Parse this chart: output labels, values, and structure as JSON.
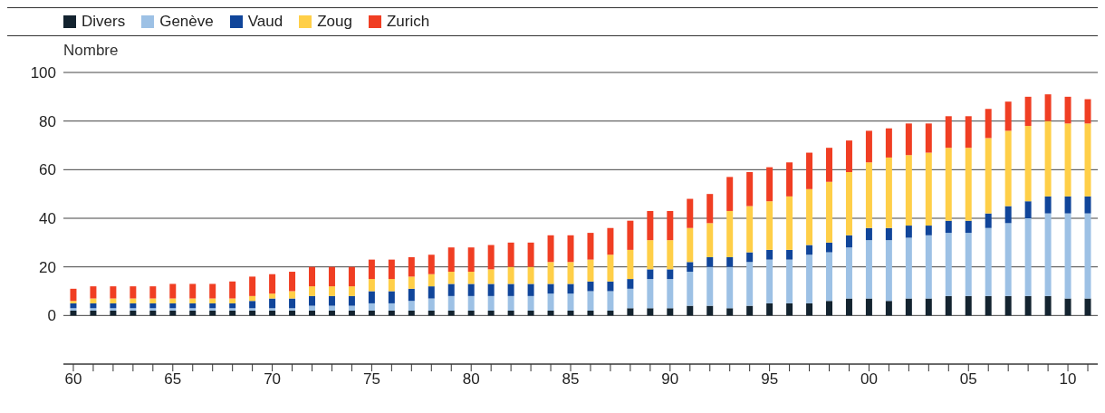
{
  "chart_data": {
    "type": "bar",
    "stacked": true,
    "ylabel": "Nombre",
    "categories": [
      "60",
      null,
      null,
      null,
      null,
      "65",
      null,
      null,
      null,
      null,
      "70",
      null,
      null,
      null,
      null,
      "75",
      null,
      null,
      null,
      null,
      "80",
      null,
      null,
      null,
      null,
      "85",
      null,
      null,
      null,
      null,
      "90",
      null,
      null,
      null,
      null,
      "95",
      null,
      null,
      null,
      null,
      "00",
      null,
      null,
      null,
      null,
      "05",
      null,
      null,
      null,
      null,
      "10",
      null
    ],
    "series": [
      {
        "name": "Divers",
        "color": "#13232f",
        "values": [
          2,
          2,
          2,
          2,
          2,
          2,
          2,
          2,
          2,
          2,
          2,
          2,
          2,
          2,
          2,
          2,
          2,
          2,
          2,
          2,
          2,
          2,
          2,
          2,
          2,
          2,
          2,
          2,
          3,
          3,
          3,
          4,
          4,
          3,
          4,
          5,
          5,
          5,
          6,
          7,
          7,
          6,
          7,
          7,
          8,
          8,
          8,
          8,
          8,
          8,
          7,
          7
        ]
      },
      {
        "name": "Genève",
        "color": "#9dc1e5",
        "values": [
          1,
          1,
          1,
          1,
          1,
          1,
          1,
          1,
          1,
          1,
          1,
          1,
          2,
          2,
          2,
          3,
          3,
          4,
          5,
          6,
          6,
          6,
          6,
          6,
          7,
          7,
          8,
          8,
          8,
          12,
          12,
          14,
          16,
          17,
          18,
          18,
          18,
          20,
          20,
          21,
          24,
          25,
          25,
          26,
          26,
          26,
          28,
          30,
          32,
          34,
          35,
          35
        ]
      },
      {
        "name": "Vaud",
        "color": "#10459a",
        "values": [
          2,
          2,
          2,
          2,
          2,
          2,
          2,
          2,
          2,
          3,
          4,
          4,
          4,
          4,
          4,
          5,
          5,
          5,
          5,
          5,
          5,
          5,
          5,
          5,
          4,
          4,
          4,
          4,
          4,
          4,
          4,
          4,
          4,
          4,
          4,
          4,
          4,
          4,
          4,
          5,
          5,
          5,
          5,
          4,
          5,
          5,
          6,
          7,
          7,
          7,
          7,
          7
        ]
      },
      {
        "name": "Zoug",
        "color": "#ffcf48",
        "values": [
          1,
          2,
          2,
          2,
          2,
          2,
          2,
          2,
          2,
          2,
          2,
          3,
          4,
          4,
          4,
          5,
          5,
          5,
          5,
          5,
          5,
          6,
          7,
          7,
          9,
          9,
          9,
          11,
          12,
          12,
          12,
          14,
          14,
          19,
          19,
          20,
          22,
          23,
          25,
          26,
          27,
          29,
          29,
          30,
          30,
          30,
          31,
          31,
          31,
          31,
          30,
          30
        ]
      },
      {
        "name": "Zurich",
        "color": "#f03e23",
        "values": [
          5,
          5,
          5,
          5,
          5,
          6,
          6,
          6,
          7,
          8,
          8,
          8,
          8,
          8,
          8,
          8,
          8,
          8,
          8,
          10,
          10,
          10,
          10,
          10,
          11,
          11,
          11,
          11,
          12,
          12,
          12,
          12,
          12,
          14,
          14,
          14,
          14,
          15,
          14,
          13,
          13,
          12,
          13,
          12,
          13,
          13,
          12,
          12,
          12,
          11,
          11,
          10
        ]
      }
    ],
    "ylim": [
      -20,
      100
    ],
    "yticks": [
      0,
      20,
      40,
      60,
      80,
      100
    ],
    "grid": "y",
    "legend": "top"
  }
}
